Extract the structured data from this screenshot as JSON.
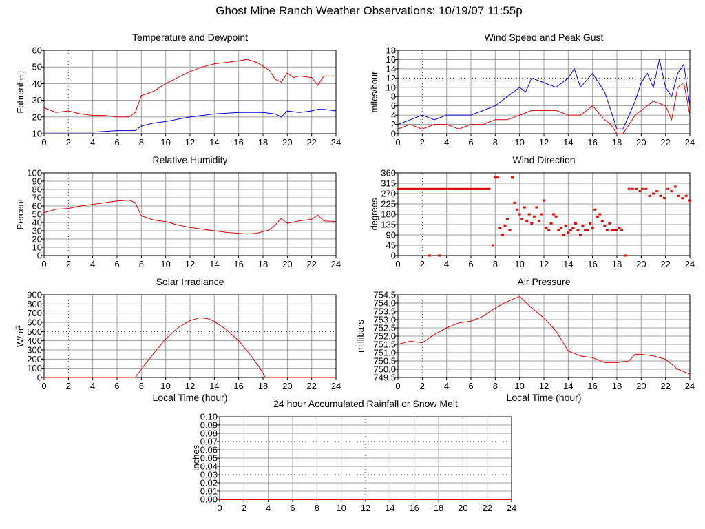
{
  "page": {
    "title": "Ghost Mine Ranch Weather Observations: 10/19/07 11:55p"
  },
  "colors": {
    "primary": "#e00000",
    "secondary": "#0000cc",
    "grid": "#a0a0a0",
    "axis": "#000000"
  },
  "chart_data": [
    {
      "id": "temp",
      "type": "line",
      "title": "Temperature and Dewpoint",
      "xlabel": "",
      "ylabel": "Fahrenheit",
      "xlim": [
        0,
        24
      ],
      "ylim": [
        10,
        65
      ],
      "xticks": [
        "0",
        "2",
        "4",
        "6",
        "8",
        "10",
        "12",
        "14",
        "16",
        "18",
        "20",
        "22",
        "24"
      ],
      "yticks": [
        "10",
        "20",
        "30",
        "40",
        "50",
        "60"
      ],
      "series": [
        {
          "color": "#e00000",
          "x": [
            0,
            1,
            2,
            3,
            4,
            5,
            6,
            7,
            7.5,
            8,
            9,
            10,
            11,
            12,
            13,
            14,
            15,
            16,
            16.7,
            17.5,
            18.5,
            19,
            19.5,
            20,
            20.5,
            21,
            22,
            22.5,
            23,
            24
          ],
          "y": [
            27,
            24,
            25,
            23,
            22,
            22,
            21,
            21,
            24,
            35,
            38,
            43,
            47,
            51,
            54,
            56,
            57,
            58,
            59,
            57,
            52,
            46,
            44,
            50,
            47,
            48,
            47,
            42,
            48,
            48
          ]
        },
        {
          "color": "#0000cc",
          "x": [
            0,
            2,
            4,
            6,
            7.5,
            8,
            9,
            10,
            12,
            14,
            16,
            18,
            19,
            19.5,
            20,
            21,
            22,
            22.5,
            23,
            24
          ],
          "y": [
            11,
            11,
            11,
            12,
            12,
            15,
            17,
            18,
            21,
            23,
            24,
            24,
            23,
            21,
            25,
            24,
            25,
            26,
            26,
            25
          ]
        }
      ]
    },
    {
      "id": "wind",
      "type": "line",
      "title": "Wind Speed and Peak Gust",
      "xlabel": "",
      "ylabel": "miles/hour",
      "xlim": [
        0,
        24
      ],
      "ylim": [
        0,
        18
      ],
      "xticks": [
        "0",
        "2",
        "4",
        "6",
        "8",
        "10",
        "12",
        "14",
        "16",
        "18",
        "20",
        "22",
        "24"
      ],
      "yticks": [
        "0",
        "2",
        "4",
        "6",
        "8",
        "10",
        "12",
        "14",
        "16",
        "18"
      ],
      "series": [
        {
          "color": "#0000cc",
          "x": [
            0,
            1,
            2,
            3,
            4,
            5,
            6,
            7,
            8,
            9,
            10,
            10.5,
            11,
            12,
            13,
            14,
            14.5,
            15,
            16,
            17,
            17.5,
            18,
            18.5,
            19,
            19.5,
            20,
            20.5,
            21,
            21.5,
            22,
            22.5,
            23,
            23.5,
            24
          ],
          "y": [
            2,
            3,
            4,
            3,
            4,
            4,
            4,
            5,
            6,
            8,
            10,
            9,
            12,
            11,
            10,
            12,
            14,
            10,
            13,
            9,
            5,
            1,
            1,
            4,
            7,
            11,
            13,
            10,
            16,
            10,
            8,
            13,
            15,
            6
          ]
        },
        {
          "color": "#e00000",
          "x": [
            0,
            1,
            2,
            3,
            4,
            5,
            6,
            7,
            8,
            9,
            10,
            11,
            12,
            13,
            14,
            15,
            16,
            17,
            17.5,
            18,
            18.5,
            19,
            19.5,
            20,
            21,
            22,
            22.5,
            23,
            23.5,
            24
          ],
          "y": [
            1,
            2,
            1,
            2,
            2,
            1,
            2,
            2,
            3,
            3,
            4,
            5,
            5,
            5,
            4,
            4,
            6,
            3,
            2,
            0,
            0,
            2,
            4,
            5,
            7,
            6,
            3,
            10,
            11,
            4
          ]
        }
      ]
    },
    {
      "id": "rh",
      "type": "line",
      "title": "Relative Humidity",
      "xlabel": "",
      "ylabel": "Percent",
      "xlim": [
        0,
        24
      ],
      "ylim": [
        0,
        100
      ],
      "xticks": [
        "0",
        "2",
        "4",
        "6",
        "8",
        "10",
        "12",
        "14",
        "16",
        "18",
        "20",
        "22",
        "24"
      ],
      "yticks": [
        "0",
        "10",
        "20",
        "30",
        "40",
        "50",
        "60",
        "70",
        "80",
        "90",
        "100"
      ],
      "series": [
        {
          "color": "#e00000",
          "x": [
            0,
            1,
            2,
            3,
            4,
            5,
            6,
            7,
            7.5,
            8,
            9,
            10,
            11,
            12,
            13,
            14,
            15,
            16,
            16.7,
            17.5,
            18.5,
            19,
            19.5,
            20,
            21,
            22,
            22.5,
            23,
            24
          ],
          "y": [
            52,
            56,
            57,
            60,
            62,
            64,
            66,
            67,
            64,
            48,
            43,
            41,
            37,
            34,
            32,
            30,
            28,
            27,
            26,
            27,
            31,
            37,
            45,
            39,
            42,
            44,
            49,
            42,
            41
          ]
        }
      ]
    },
    {
      "id": "wdir",
      "type": "scatter",
      "title": "Wind Direction",
      "xlabel": "",
      "ylabel": "degrees",
      "xlim": [
        0,
        24
      ],
      "ylim": [
        0,
        360
      ],
      "xticks": [
        "0",
        "2",
        "4",
        "6",
        "8",
        "10",
        "12",
        "14",
        "16",
        "18",
        "20",
        "22",
        "24"
      ],
      "yticks": [
        "0",
        "45",
        "90",
        "135",
        "180",
        "225",
        "270",
        "315",
        "360"
      ],
      "series": [
        {
          "color": "#e00000",
          "x": [
            0,
            0.3,
            0.6,
            0.9,
            1.2,
            1.5,
            1.8,
            2.1,
            2.4,
            2.7,
            3,
            3.3,
            3.6,
            3.9,
            4.2,
            4.5,
            4.8,
            5.1,
            5.4,
            5.7,
            6,
            6.3,
            6.6,
            6.9,
            7.2,
            7.5,
            2.6,
            3.4,
            7.8,
            8.0,
            8.2,
            8.4,
            8.6,
            8.8,
            9,
            9.2,
            9.4,
            9.6,
            9.8,
            10,
            10.2,
            10.4,
            10.6,
            10.8,
            11,
            11.2,
            11.4,
            11.6,
            11.8,
            12,
            12.2,
            12.4,
            12.6,
            12.8,
            13,
            13.2,
            13.4,
            13.6,
            13.8,
            14,
            14.2,
            14.4,
            14.6,
            14.8,
            15,
            15.2,
            15.4,
            15.6,
            15.8,
            16,
            16.2,
            16.4,
            16.6,
            16.8,
            17,
            17.2,
            17.4,
            17.6,
            17.8,
            18,
            18.2,
            18.4,
            18.7,
            19,
            19.3,
            19.6,
            19.9,
            20.1,
            20.4,
            20.7,
            21,
            21.3,
            21.6,
            21.9,
            22.2,
            22.5,
            22.8,
            23.1,
            23.4,
            23.7,
            24
          ],
          "y": [
            290,
            290,
            290,
            290,
            290,
            290,
            290,
            290,
            290,
            290,
            290,
            290,
            290,
            290,
            290,
            290,
            290,
            290,
            290,
            290,
            290,
            290,
            290,
            290,
            290,
            290,
            0,
            0,
            45,
            340,
            340,
            120,
            90,
            130,
            160,
            110,
            340,
            230,
            200,
            180,
            160,
            210,
            150,
            180,
            140,
            170,
            210,
            150,
            180,
            240,
            120,
            110,
            140,
            180,
            170,
            110,
            120,
            90,
            130,
            100,
            110,
            120,
            140,
            110,
            90,
            130,
            110,
            110,
            140,
            120,
            200,
            170,
            180,
            150,
            130,
            110,
            140,
            110,
            110,
            110,
            120,
            110,
            0,
            290,
            290,
            290,
            280,
            290,
            290,
            260,
            270,
            280,
            260,
            250,
            290,
            280,
            300,
            260,
            250,
            260,
            240
          ]
        }
      ]
    },
    {
      "id": "solar",
      "type": "line",
      "title": "Solar Irradiance",
      "xlabel": "Local Time (hour)",
      "ylabel": "W/m",
      "ylabel_sup": "2",
      "xlim": [
        0,
        24
      ],
      "ylim": [
        0,
        900
      ],
      "xticks": [
        "0",
        "2",
        "4",
        "6",
        "8",
        "10",
        "12",
        "14",
        "16",
        "18",
        "20",
        "22",
        "24"
      ],
      "yticks": [
        "0",
        "100",
        "200",
        "300",
        "400",
        "500",
        "600",
        "700",
        "800",
        "900"
      ],
      "series": [
        {
          "color": "#e00000",
          "x": [
            0,
            7.5,
            8,
            9,
            10,
            11,
            12,
            12.8,
            13.5,
            14,
            15,
            16,
            17,
            17.7,
            18.2,
            24
          ],
          "y": [
            0,
            0,
            90,
            260,
            420,
            540,
            620,
            650,
            640,
            610,
            520,
            400,
            240,
            110,
            0,
            0
          ]
        }
      ]
    },
    {
      "id": "pressure",
      "type": "line",
      "title": "Air Pressure",
      "xlabel": "Local Time (hour)",
      "ylabel": "millibars",
      "xlim": [
        0,
        24
      ],
      "ylim": [
        749.5,
        754.5
      ],
      "xticks": [
        "0",
        "2",
        "4",
        "6",
        "8",
        "10",
        "12",
        "14",
        "16",
        "18",
        "20",
        "22",
        "24"
      ],
      "yticks": [
        "749.5",
        "750.0",
        "750.5",
        "751.0",
        "751.5",
        "752.0",
        "752.5",
        "753.0",
        "753.5",
        "754.0",
        "754.5"
      ],
      "series": [
        {
          "color": "#e00000",
          "x": [
            0,
            1,
            2,
            3,
            4,
            5,
            6,
            7,
            8,
            9,
            10,
            11,
            12,
            13,
            14,
            15,
            16,
            17,
            18,
            19,
            19.5,
            20,
            21,
            22,
            23,
            24
          ],
          "y": [
            751.5,
            751.7,
            751.6,
            752.1,
            752.5,
            752.8,
            752.9,
            753.2,
            753.7,
            754.1,
            754.4,
            753.7,
            753.1,
            752.3,
            751.1,
            750.8,
            750.7,
            750.4,
            750.4,
            750.5,
            750.9,
            750.9,
            750.8,
            750.6,
            750.0,
            749.7
          ]
        }
      ]
    },
    {
      "id": "rain",
      "type": "line",
      "title": "24 hour Accumulated Rainfall or Snow Melt",
      "xlabel": "",
      "ylabel": "Inches",
      "xlim": [
        0,
        24
      ],
      "ylim": [
        0,
        0.1
      ],
      "xticks": [
        "0",
        "2",
        "4",
        "6",
        "8",
        "10",
        "12",
        "14",
        "16",
        "18",
        "20",
        "22",
        "24"
      ],
      "yticks": [
        "0.00",
        "0.01",
        "0.02",
        "0.03",
        "0.04",
        "0.05",
        "0.06",
        "0.07",
        "0.08",
        "0.09",
        "0.10"
      ],
      "series": [
        {
          "color": "#e00000",
          "x": [
            0,
            24
          ],
          "y": [
            0,
            0
          ]
        }
      ]
    }
  ]
}
